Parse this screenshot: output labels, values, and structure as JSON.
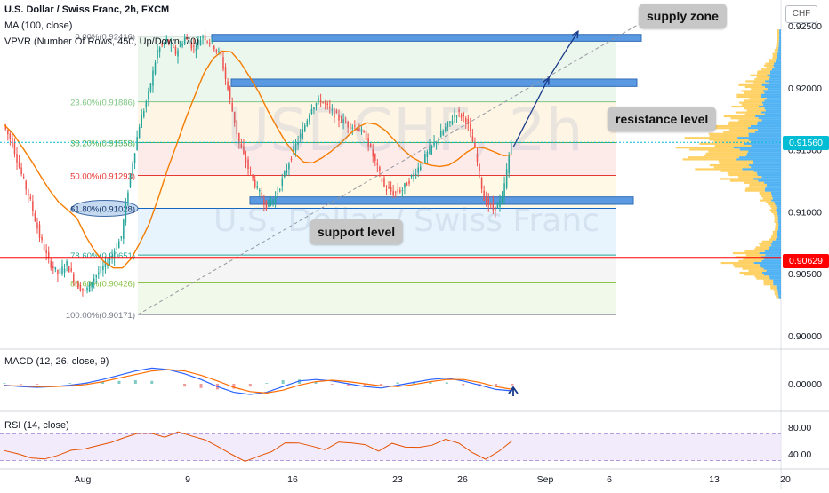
{
  "header": {
    "symbol_line": "U.S. Dollar / Swiss Franc, 2h, FXCM",
    "ma_line": "MA (100, close)",
    "vpvr_line": "VPVR (Number Of Rows, 450, Up/Down, 70)",
    "currency_tag": "CHF"
  },
  "watermark": {
    "symbol": "USDCHF, 2h",
    "name": "U.S. Dollar / Swiss Franc"
  },
  "annotations": {
    "supply_zone": "supply zone",
    "resistance_level": "resistance level",
    "support_level": "support level"
  },
  "price_tags": {
    "current": "0.91560",
    "level": "0.90629"
  },
  "colors": {
    "candle_up": "#26a69a",
    "candle_down": "#ef5350",
    "ma": "#f57c00",
    "macd": "#2962ff",
    "signal": "#ff6d00",
    "rsi": "#e65100",
    "zone": "#4a8fe0",
    "current_price": "#00bcd4",
    "red_level": "#ff0000",
    "vp_up": "#26a0f0",
    "vp_down": "#ffc53d"
  },
  "chart_data": [
    {
      "type": "candlestick",
      "title": "U.S. Dollar / Swiss Franc, 2h, FXCM",
      "y_axis_ticks": [
        "0.92500",
        "0.92000",
        "0.91500",
        "0.91000",
        "0.90500",
        "0.90000"
      ],
      "ylim": [
        0.899,
        0.9265
      ],
      "x_tick_labels": [
        "Aug",
        "9",
        "16",
        "23",
        "26",
        "Sep",
        "6",
        "13",
        "20"
      ],
      "close_path": [
        0.917,
        0.9155,
        0.913,
        0.9108,
        0.908,
        0.906,
        0.905,
        0.9058,
        0.9042,
        0.9035,
        0.9047,
        0.9055,
        0.9065,
        0.908,
        0.913,
        0.917,
        0.9195,
        0.923,
        0.9238,
        0.9228,
        0.924,
        0.9232,
        0.9242,
        0.9236,
        0.9225,
        0.919,
        0.9155,
        0.9135,
        0.9118,
        0.9105,
        0.9112,
        0.913,
        0.915,
        0.9165,
        0.9185,
        0.919,
        0.9182,
        0.9175,
        0.917,
        0.9168,
        0.916,
        0.914,
        0.912,
        0.9115,
        0.9118,
        0.9128,
        0.9138,
        0.915,
        0.916,
        0.917,
        0.918,
        0.9175,
        0.915,
        0.911,
        0.9102,
        0.911,
        0.9156
      ],
      "fibonacci": [
        {
          "label": "0.00%(0.92416)",
          "value": 0.92416
        },
        {
          "label": "23.60%(0.91886)",
          "value": 0.91886
        },
        {
          "label": "38.20%(0.91558)",
          "value": 0.91558
        },
        {
          "label": "50.00%(0.91293)",
          "value": 0.91293
        },
        {
          "label": "61.80%(0.91028)",
          "value": 0.91028
        },
        {
          "label": "78.60%(0.90651)",
          "value": 0.90651
        },
        {
          "label": "88.60%(0.90426)",
          "value": 0.90426
        },
        {
          "label": "100.00%(0.90171)",
          "value": 0.90171
        }
      ],
      "zones": [
        {
          "name": "supply zone",
          "top": 0.9243,
          "bottom": 0.92375
        },
        {
          "name": "resistance level",
          "top": 0.9207,
          "bottom": 0.9201
        },
        {
          "name": "support level",
          "top": 0.9112,
          "bottom": 0.9106
        }
      ],
      "current_price": 0.9156,
      "red_level": 0.90629
    },
    {
      "type": "line",
      "title": "MACD (12, 26, close, 9)",
      "y_axis_ticks": [
        "0.00000"
      ],
      "ylim": [
        -0.003,
        0.003
      ],
      "series": [
        {
          "name": "MACD",
          "values": [
            -0.0002,
            -0.0004,
            -0.0005,
            -0.0004,
            -0.0002,
            0.0001,
            0.0006,
            0.0012,
            0.0018,
            0.0022,
            0.002,
            0.0014,
            0.0006,
            -0.0004,
            -0.0012,
            -0.0015,
            -0.0012,
            -0.0004,
            0.0004,
            0.0006,
            0.0004,
            0.0,
            -0.0004,
            -0.0006,
            -0.0002,
            0.0002,
            0.0006,
            0.0008,
            0.0004,
            -0.0002,
            -0.0008,
            -0.001
          ]
        },
        {
          "name": "Signal",
          "values": [
            -0.0003,
            -0.0003,
            -0.0004,
            -0.0004,
            -0.0003,
            -0.0001,
            0.0003,
            0.0008,
            0.0013,
            0.0018,
            0.002,
            0.0018,
            0.0012,
            0.0004,
            -0.0005,
            -0.0011,
            -0.0013,
            -0.0009,
            -0.0002,
            0.0003,
            0.0005,
            0.0003,
            0.0,
            -0.0003,
            -0.0004,
            -0.0001,
            0.0003,
            0.0006,
            0.0006,
            0.0002,
            -0.0004,
            -0.0008
          ]
        }
      ]
    },
    {
      "type": "line",
      "title": "RSI (14, close)",
      "y_axis_ticks": [
        "80.00",
        "40.00"
      ],
      "ylim": [
        20,
        100
      ],
      "series": [
        {
          "name": "RSI",
          "values": [
            45,
            40,
            34,
            32,
            38,
            45,
            48,
            52,
            58,
            64,
            72,
            70,
            66,
            72,
            68,
            60,
            52,
            38,
            30,
            35,
            45,
            55,
            58,
            50,
            48,
            56,
            58,
            52,
            46,
            54,
            52,
            48,
            55,
            60,
            58,
            40,
            34,
            42,
            60
          ]
        }
      ]
    }
  ]
}
